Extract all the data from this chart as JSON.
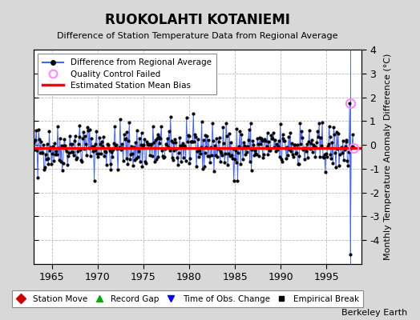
{
  "title": "RUOKOLAHTI KOTANIEMI",
  "subtitle": "Difference of Station Temperature Data from Regional Average",
  "ylabel": "Monthly Temperature Anomaly Difference (°C)",
  "xlim": [
    1963.0,
    1998.8
  ],
  "ylim": [
    -5,
    4
  ],
  "yticks": [
    -4,
    -3,
    -2,
    -1,
    0,
    1,
    2,
    3,
    4
  ],
  "xticks": [
    1965,
    1970,
    1975,
    1980,
    1985,
    1990,
    1995
  ],
  "bias_line_y": -0.12,
  "background_color": "#d8d8d8",
  "plot_bg_color": "#ffffff",
  "grid_color": "#bbbbbb",
  "line_color": "#4466ff",
  "dot_color": "#000000",
  "bias_color": "#ff0000",
  "qc_color": "#ff88ff",
  "watermark": "Berkeley Earth",
  "legend1_entries": [
    {
      "label": "Difference from Regional Average"
    },
    {
      "label": "Quality Control Failed"
    },
    {
      "label": "Estimated Station Mean Bias"
    }
  ],
  "legend2_entries": [
    {
      "label": "Station Move",
      "color": "#cc0000",
      "marker": "D"
    },
    {
      "label": "Record Gap",
      "color": "#00aa00",
      "marker": "^"
    },
    {
      "label": "Time of Obs. Change",
      "color": "#0000ff",
      "marker": "v"
    },
    {
      "label": "Empirical Break",
      "color": "#000000",
      "marker": "s"
    }
  ],
  "qc_point_x": 1997.58,
  "qc_point_y": 1.75,
  "qc_point2_x": 1997.92,
  "qc_point2_y": -0.12,
  "vertical_line_x": 1997.58,
  "data_year_start": 1963.042,
  "data_year_end": 1998.0,
  "data_month_step": 0.08333,
  "seed": 42,
  "data_std": 0.48,
  "data_mean": -0.12
}
